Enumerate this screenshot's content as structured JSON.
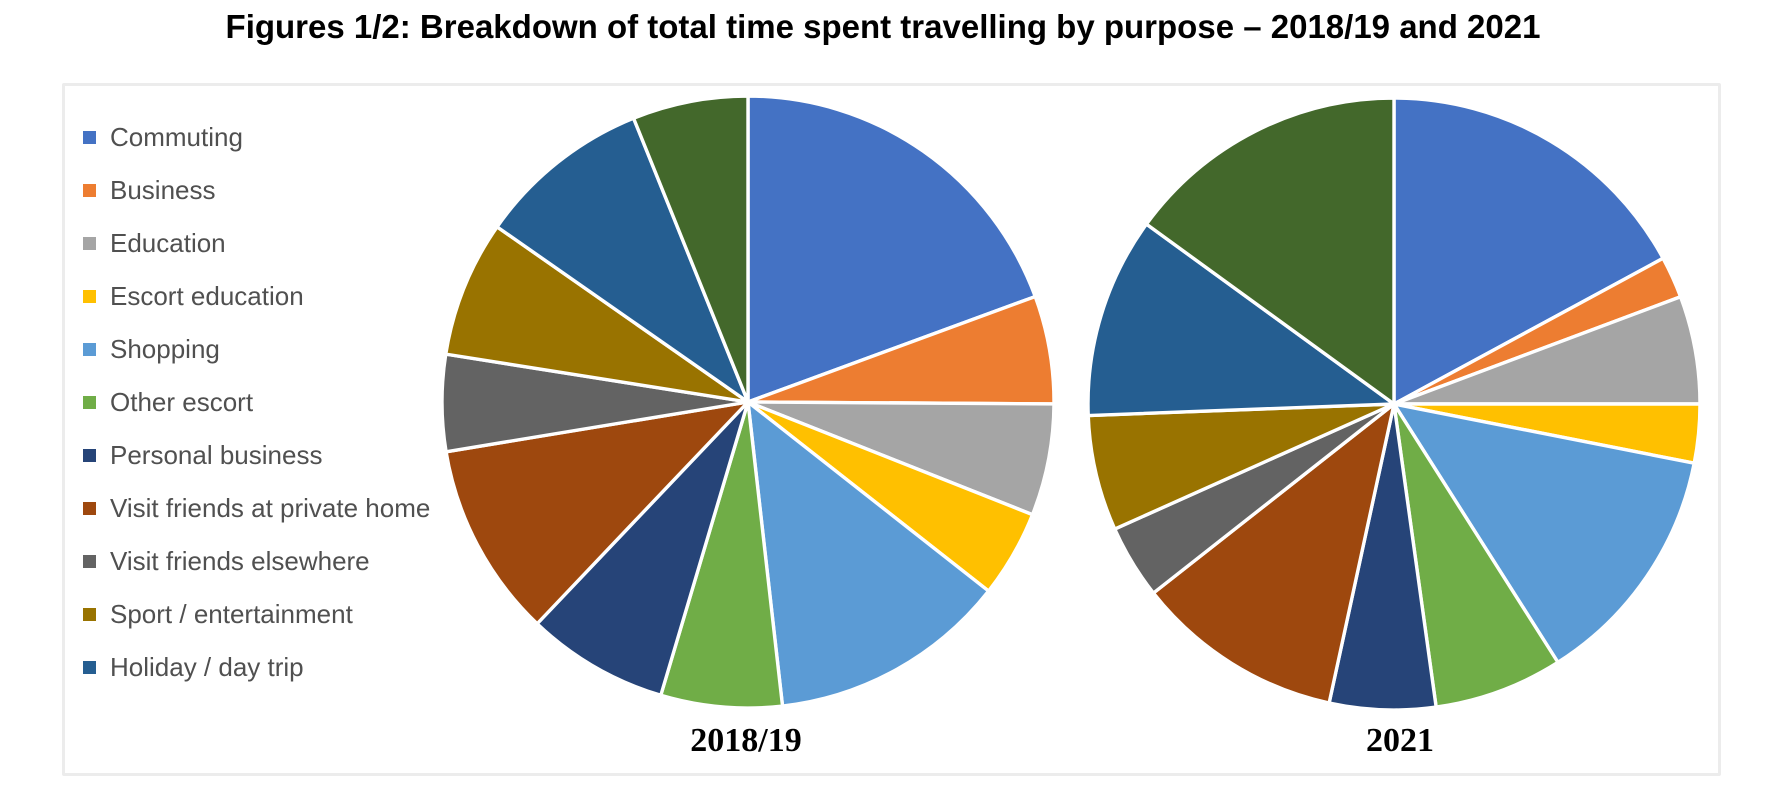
{
  "title": "Figures 1/2: Breakdown of total time spent travelling by purpose – 2018/19 and 2021",
  "legend": {
    "items": [
      {
        "label": "Commuting",
        "color": "#4472C4"
      },
      {
        "label": "Business",
        "color": "#ED7D31"
      },
      {
        "label": "Education",
        "color": "#A5A5A5"
      },
      {
        "label": "Escort education",
        "color": "#FFC000"
      },
      {
        "label": "Shopping",
        "color": "#5B9BD5"
      },
      {
        "label": "Other escort",
        "color": "#70AD47"
      },
      {
        "label": "Personal business",
        "color": "#264478"
      },
      {
        "label": "Visit friends at private home",
        "color": "#9E480E"
      },
      {
        "label": "Visit friends elsewhere",
        "color": "#636363"
      },
      {
        "label": "Sport / entertainment",
        "color": "#997300"
      },
      {
        "label": "Holiday / day trip",
        "color": "#255E91"
      }
    ]
  },
  "chart_data": [
    {
      "type": "pie",
      "title": "2018/19",
      "start_angle_deg": 0,
      "direction": "clockwise",
      "value_unit": "percent of total travel time (estimated from slice angles)",
      "labels": [
        "Commuting",
        "Business",
        "Education",
        "Escort education",
        "Shopping",
        "Other escort",
        "Personal business",
        "Visit friends at private home",
        "Visit friends elsewhere",
        "Sport / entertainment",
        "Holiday / day trip",
        "(unlabelled)"
      ],
      "values": [
        19.4,
        5.7,
        5.9,
        4.6,
        12.6,
        6.4,
        7.5,
        10.3,
        5.1,
        7.2,
        9.2,
        6.1
      ],
      "colors": [
        "#4472C4",
        "#ED7D31",
        "#A5A5A5",
        "#FFC000",
        "#5B9BD5",
        "#70AD47",
        "#264478",
        "#9E480E",
        "#636363",
        "#997300",
        "#255E91",
        "#43682B"
      ]
    },
    {
      "type": "pie",
      "title": "2021",
      "start_angle_deg": 0,
      "direction": "clockwise",
      "value_unit": "percent of total travel time (estimated from slice angles)",
      "labels": [
        "Commuting",
        "Business",
        "Education",
        "Escort education",
        "Shopping",
        "Other escort",
        "Personal business",
        "Visit friends at private home",
        "Visit friends elsewhere",
        "Sport / entertainment",
        "Holiday / day trip",
        "(unlabelled)"
      ],
      "values": [
        17.1,
        2.2,
        5.7,
        3.1,
        12.9,
        6.8,
        5.6,
        11.0,
        3.9,
        6.1,
        10.6,
        15.0
      ],
      "colors": [
        "#4472C4",
        "#ED7D31",
        "#A5A5A5",
        "#FFC000",
        "#5B9BD5",
        "#70AD47",
        "#264478",
        "#9E480E",
        "#636363",
        "#997300",
        "#255E91",
        "#43682B"
      ]
    }
  ],
  "note": "Both pies contain a twelfth dark-green slice that has no corresponding entry in the visible legend."
}
